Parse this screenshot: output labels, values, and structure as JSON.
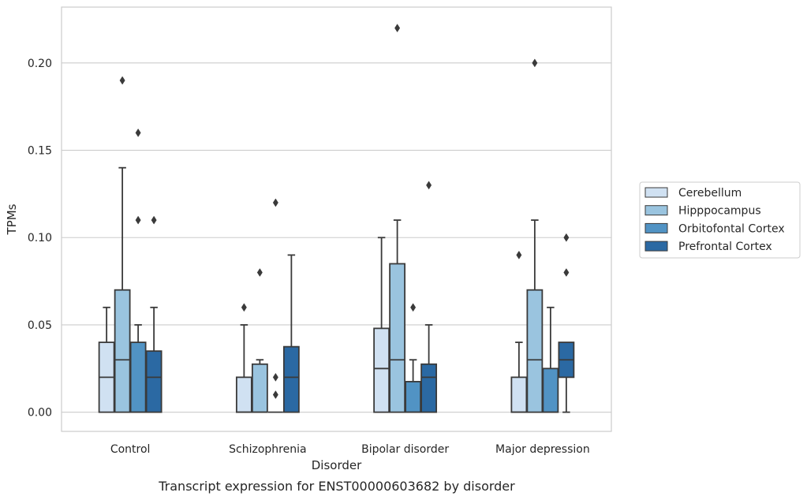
{
  "chart_data": {
    "type": "box",
    "caption": "Transcript expression for ENST00000603682 by disorder",
    "xlabel": "Disorder",
    "ylabel": "TPMs",
    "ylim": [
      -0.011,
      0.232
    ],
    "yticks": [
      "0.00",
      "0.05",
      "0.10",
      "0.15",
      "0.20"
    ],
    "ytick_values": [
      0.0,
      0.05,
      0.1,
      0.15,
      0.2
    ],
    "categories": [
      "Control",
      "Schizophrenia",
      "Bipolar disorder",
      "Major depression"
    ],
    "grid": true,
    "legend_position": "right",
    "series": [
      {
        "name": "Cerebellum",
        "color": "#d0e1f2",
        "boxes": [
          {
            "whislo": 0.0,
            "q1": 0.0,
            "med": 0.02,
            "q3": 0.04,
            "whishi": 0.06,
            "fliers": []
          },
          {
            "whislo": 0.0,
            "q1": 0.0,
            "med": 0.0,
            "q3": 0.02,
            "whishi": 0.05,
            "fliers": [
              0.06
            ]
          },
          {
            "whislo": 0.0,
            "q1": 0.0,
            "med": 0.025,
            "q3": 0.048,
            "whishi": 0.1,
            "fliers": []
          },
          {
            "whislo": 0.0,
            "q1": 0.0,
            "med": 0.0,
            "q3": 0.02,
            "whishi": 0.04,
            "fliers": [
              0.09
            ]
          }
        ]
      },
      {
        "name": "Hipppocampus",
        "color": "#9ac4df",
        "boxes": [
          {
            "whislo": 0.0,
            "q1": 0.0,
            "med": 0.03,
            "q3": 0.07,
            "whishi": 0.14,
            "fliers": [
              0.19
            ]
          },
          {
            "whislo": 0.0,
            "q1": 0.0,
            "med": 0.0,
            "q3": 0.0275,
            "whishi": 0.03,
            "fliers": [
              0.08
            ]
          },
          {
            "whislo": 0.0,
            "q1": 0.0,
            "med": 0.03,
            "q3": 0.085,
            "whishi": 0.11,
            "fliers": [
              0.22
            ]
          },
          {
            "whislo": 0.0,
            "q1": 0.0,
            "med": 0.03,
            "q3": 0.07,
            "whishi": 0.11,
            "fliers": [
              0.2
            ]
          }
        ]
      },
      {
        "name": "Orbitofontal Cortex",
        "color": "#5193c4",
        "boxes": [
          {
            "whislo": 0.0,
            "q1": 0.0,
            "med": 0.0,
            "q3": 0.04,
            "whishi": 0.05,
            "fliers": [
              0.16,
              0.11
            ]
          },
          {
            "whislo": 0.0,
            "q1": 0.0,
            "med": 0.0,
            "q3": 0.0,
            "whishi": 0.0,
            "fliers": [
              0.12,
              0.02,
              0.01
            ]
          },
          {
            "whislo": 0.0,
            "q1": 0.0,
            "med": 0.0,
            "q3": 0.0175,
            "whishi": 0.03,
            "fliers": [
              0.06
            ]
          },
          {
            "whislo": 0.0,
            "q1": 0.0,
            "med": 0.0,
            "q3": 0.025,
            "whishi": 0.06,
            "fliers": []
          }
        ]
      },
      {
        "name": "Prefrontal Cortex",
        "color": "#2b69a3",
        "boxes": [
          {
            "whislo": 0.0,
            "q1": 0.0,
            "med": 0.02,
            "q3": 0.035,
            "whishi": 0.06,
            "fliers": [
              0.11
            ]
          },
          {
            "whislo": 0.0,
            "q1": 0.0,
            "med": 0.02,
            "q3": 0.0375,
            "whishi": 0.09,
            "fliers": []
          },
          {
            "whislo": 0.0,
            "q1": 0.0,
            "med": 0.02,
            "q3": 0.0275,
            "whishi": 0.05,
            "fliers": [
              0.13
            ]
          },
          {
            "whislo": 0.0,
            "q1": 0.02,
            "med": 0.03,
            "q3": 0.04,
            "whishi": 0.04,
            "fliers": [
              0.1,
              0.08
            ]
          }
        ]
      }
    ]
  }
}
